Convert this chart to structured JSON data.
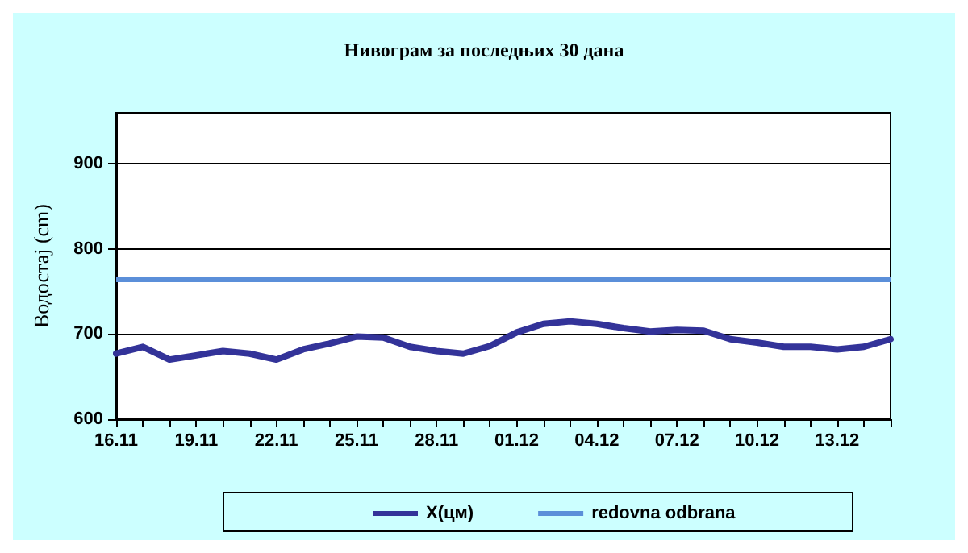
{
  "chart_data": {
    "type": "line",
    "title": "Нивограм за последњих 30 дана",
    "ylabel": "Водостај (cm)",
    "categories": [
      "16.11",
      null,
      null,
      "19.11",
      null,
      null,
      "22.11",
      null,
      null,
      "25.11",
      null,
      null,
      "28.11",
      null,
      null,
      "01.12",
      null,
      null,
      "04.12",
      null,
      null,
      "07.12",
      null,
      null,
      "10.12",
      null,
      null,
      "13.12",
      null,
      null
    ],
    "series": [
      {
        "name": "X(цм)",
        "color": "#333399",
        "values": [
          677,
          685,
          670,
          675,
          680,
          677,
          670,
          682,
          689,
          697,
          696,
          685,
          680,
          677,
          686,
          702,
          712,
          715,
          712,
          707,
          703,
          705,
          704,
          694,
          690,
          685,
          685,
          682,
          685,
          694
        ]
      }
    ],
    "ref_lines": [
      {
        "axis": "y",
        "value": 765,
        "label": "redovna odbrana",
        "color": "#5b8fd9"
      }
    ],
    "ylim": [
      600,
      960
    ],
    "yticks": [
      600,
      700,
      800,
      900
    ],
    "grid": "y",
    "legend": "bottom",
    "marker": "none",
    "line_style": "solid"
  }
}
